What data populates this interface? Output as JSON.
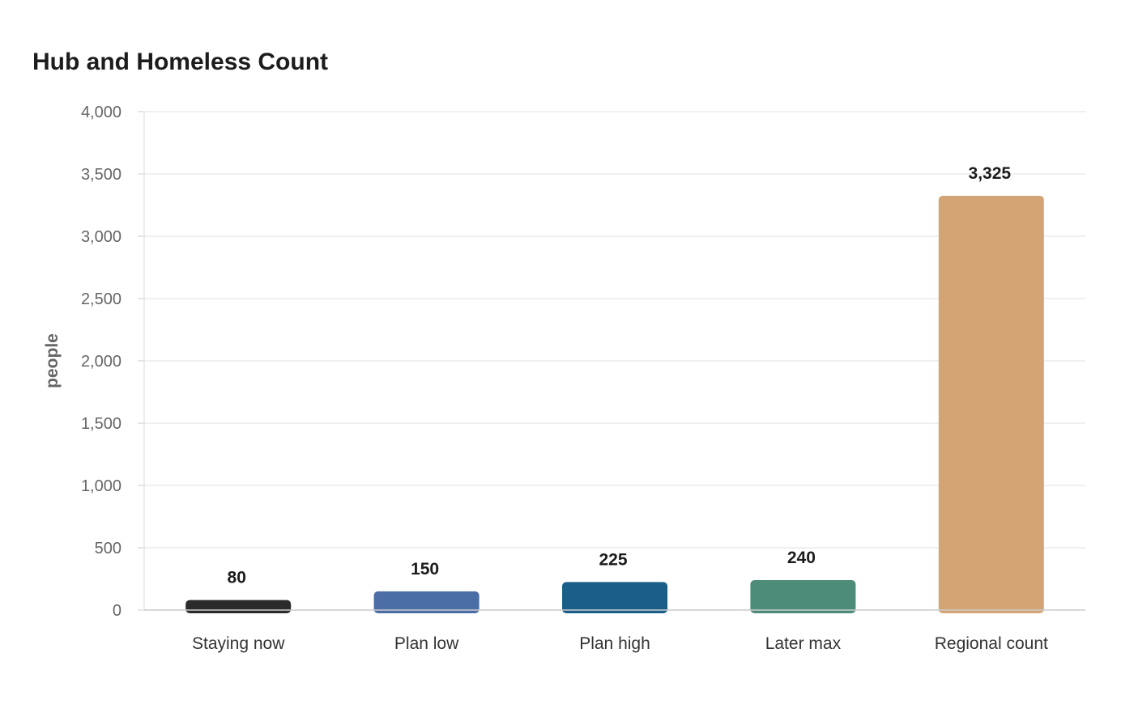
{
  "chart_data": {
    "type": "bar",
    "title": "Hub and Homeless Count",
    "xlabel": "",
    "ylabel": "people",
    "categories": [
      "Staying now",
      "Plan low",
      "Plan high",
      "Later max",
      "Regional count"
    ],
    "values": [
      80,
      150,
      225,
      240,
      3325
    ],
    "value_labels": [
      "80",
      "150",
      "225",
      "240",
      "3,325"
    ],
    "colors": [
      "#2b2b2b",
      "#4a6ea5",
      "#1a5f87",
      "#4e8c7a",
      "#d4a574"
    ],
    "ylim": [
      0,
      4000
    ],
    "yticks": [
      0,
      500,
      1000,
      1500,
      2000,
      2500,
      3000,
      3500,
      4000
    ],
    "ytick_labels": [
      "0",
      "500",
      "1,000",
      "1,500",
      "2,000",
      "2,500",
      "3,000",
      "3,500",
      "4,000"
    ],
    "grid": true,
    "legend": "none"
  }
}
